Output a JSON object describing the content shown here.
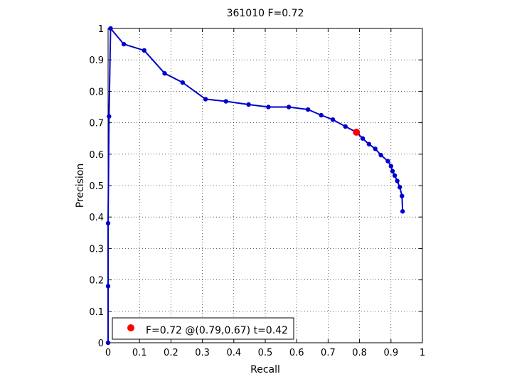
{
  "chart_data": {
    "type": "line",
    "title": "361010 F=0.72",
    "xlabel": "Recall",
    "ylabel": "Precision",
    "xlim": [
      0,
      1
    ],
    "ylim": [
      0,
      1
    ],
    "grid": true,
    "xticks": [
      0,
      0.1,
      0.2,
      0.3,
      0.4,
      0.5,
      0.6,
      0.7,
      0.8,
      0.9,
      1
    ],
    "yticks": [
      0,
      0.1,
      0.2,
      0.3,
      0.4,
      0.5,
      0.6,
      0.7,
      0.8,
      0.9,
      1
    ],
    "xtick_labels": [
      "0",
      "0.1",
      "0.2",
      "0.3",
      "0.4",
      "0.5",
      "0.6",
      "0.7",
      "0.8",
      "0.9",
      "1"
    ],
    "ytick_labels": [
      "0",
      "0.1",
      "0.2",
      "0.3",
      "0.4",
      "0.5",
      "0.6",
      "0.7",
      "0.8",
      "0.9",
      "1"
    ],
    "series": [
      {
        "color": "#0000cc",
        "x": [
          0,
          0,
          0,
          0.003,
          0.008,
          0.05,
          0.115,
          0.18,
          0.237,
          0.31,
          0.375,
          0.447,
          0.51,
          0.575,
          0.636,
          0.678,
          0.715,
          0.755,
          0.79,
          0.81,
          0.83,
          0.85,
          0.868,
          0.89,
          0.9,
          0.905,
          0.912,
          0.92,
          0.928,
          0.935,
          0.937
        ],
        "y": [
          0,
          0.18,
          0.38,
          0.72,
          1.0,
          0.95,
          0.93,
          0.857,
          0.828,
          0.775,
          0.768,
          0.758,
          0.75,
          0.75,
          0.742,
          0.724,
          0.71,
          0.688,
          0.67,
          0.65,
          0.632,
          0.617,
          0.597,
          0.578,
          0.562,
          0.546,
          0.532,
          0.515,
          0.495,
          0.467,
          0.418
        ]
      }
    ],
    "highlight_point": {
      "x": 0.79,
      "y": 0.67,
      "color": "#ff0000"
    },
    "legend": {
      "position": "bottom-left",
      "text": "F=0.72 @(0.79,0.67) t=0.42",
      "marker_color": "#ff0000"
    }
  }
}
